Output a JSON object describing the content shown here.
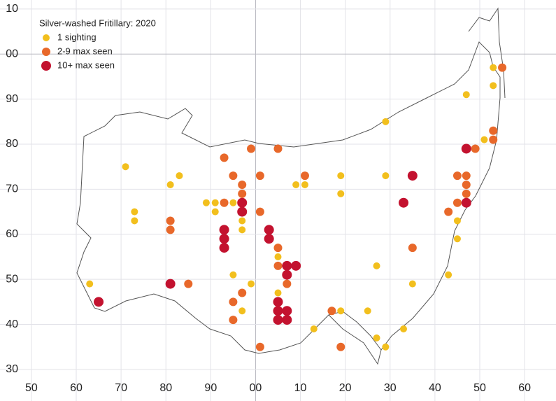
{
  "chart_data": {
    "type": "scatter",
    "title": "Silver-washed Fritillary:  2020",
    "xlim": [
      43,
      167
    ],
    "ylim": [
      23,
      112
    ],
    "xticks": [
      50,
      60,
      70,
      80,
      90,
      {
        "value": 100,
        "label": "00"
      },
      {
        "value": 110,
        "label": "10"
      },
      {
        "value": 120,
        "label": "20"
      },
      {
        "value": 130,
        "label": "30"
      },
      {
        "value": 140,
        "label": "40"
      },
      {
        "value": 150,
        "label": "50"
      },
      {
        "value": 160,
        "label": "60"
      }
    ],
    "yticks": [
      30,
      40,
      50,
      60,
      70,
      80,
      90,
      {
        "value": 100,
        "label": "00"
      },
      {
        "value": 110,
        "label": "10"
      }
    ],
    "grid": true,
    "legend": "upper left",
    "series": [
      {
        "name": "1 sighting",
        "color": "#f2bf1d",
        "size": 5,
        "x": [
          63,
          71,
          73,
          73,
          81,
          83,
          89,
          91,
          91,
          95,
          97,
          97,
          95,
          97,
          99,
          109,
          111,
          119,
          119,
          105,
          105,
          119,
          113,
          125,
          127,
          127,
          129,
          129,
          129,
          133,
          135,
          145,
          145,
          143,
          147,
          151,
          153,
          153
        ],
        "y": [
          49,
          75,
          65,
          63,
          71,
          73,
          67,
          67,
          65,
          67,
          63,
          61,
          51,
          43,
          49,
          71,
          71,
          73,
          69,
          55,
          47,
          43,
          39,
          43,
          53,
          37,
          35,
          85,
          73,
          39,
          49,
          63,
          59,
          51,
          91,
          81,
          97,
          93
        ]
      },
      {
        "name": "2-9 max seen",
        "color": "#e8682a",
        "size": 6,
        "x": [
          81,
          81,
          85,
          93,
          93,
          95,
          97,
          97,
          101,
          99,
          105,
          101,
          95,
          95,
          97,
          105,
          105,
          107,
          111,
          117,
          119,
          101,
          135,
          143,
          145,
          145,
          147,
          147,
          147,
          149,
          153,
          153,
          155
        ],
        "y": [
          63,
          61,
          49,
          77,
          67,
          73,
          71,
          69,
          73,
          79,
          79,
          65,
          45,
          41,
          47,
          57,
          53,
          49,
          73,
          43,
          35,
          35,
          57,
          65,
          73,
          67,
          73,
          71,
          69,
          79,
          83,
          81,
          97
        ]
      },
      {
        "name": "10+ max seen",
        "color": "#c3122f",
        "size": 7,
        "x": [
          65,
          81,
          93,
          93,
          93,
          97,
          97,
          103,
          103,
          107,
          109,
          107,
          105,
          105,
          105,
          107,
          107,
          133,
          135,
          147,
          147
        ],
        "y": [
          45,
          49,
          61,
          59,
          57,
          67,
          65,
          61,
          59,
          53,
          53,
          51,
          45,
          43,
          41,
          43,
          41,
          67,
          73,
          79,
          67
        ]
      }
    ]
  }
}
